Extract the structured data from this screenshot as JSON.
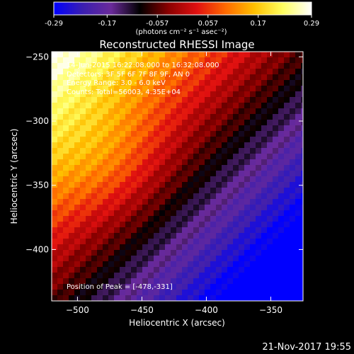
{
  "colorbar": {
    "ticks": [
      "-0.29",
      "-0.17",
      "-0.057",
      "0.057",
      "0.17",
      "0.29"
    ],
    "tick_values": [
      -0.29,
      -0.17,
      -0.057,
      0.057,
      0.17,
      0.29
    ],
    "range": [
      -0.29,
      0.29
    ],
    "unit_label": "(photons cm⁻² s⁻¹ asec⁻²)",
    "colors": [
      "#0000ff",
      "#3a1eb0",
      "#6a2a9a",
      "#000000",
      "#8a0000",
      "#e01010",
      "#ff6a00",
      "#ffc000",
      "#ffff60",
      "#ffffff"
    ]
  },
  "title": "Reconstructed RHESSI Image",
  "overlay_lines": [
    "14-Jun-2015 16:22:08.000 to 16:32:08.000",
    "Detectors: 3F 5F 6F 7F 8F 9F, AN 0",
    "Energy Range: 3.0 - 6.0 keV",
    "Counts: Total=56003, 4.35E+04"
  ],
  "peak_text": "Position of Peak = [-478,-331]",
  "timestamp": "21-Nov-2017 19:55",
  "chart_data": {
    "type": "heatmap",
    "title": "Reconstructed RHESSI Image",
    "xlabel": "Heliocentric X (arcsec)",
    "ylabel": "Heliocentric Y (arcsec)",
    "xlim": [
      -520,
      -325
    ],
    "ylim": [
      -440,
      -246
    ],
    "x_ticks": [
      -500,
      -450,
      -400,
      -350
    ],
    "y_ticks": [
      -250,
      -300,
      -350,
      -400
    ],
    "value_range": [
      -0.29,
      0.29
    ],
    "peak": {
      "x": -478,
      "y": -331
    },
    "colormap": "hot-to-blue diverging",
    "description_free": true
  }
}
